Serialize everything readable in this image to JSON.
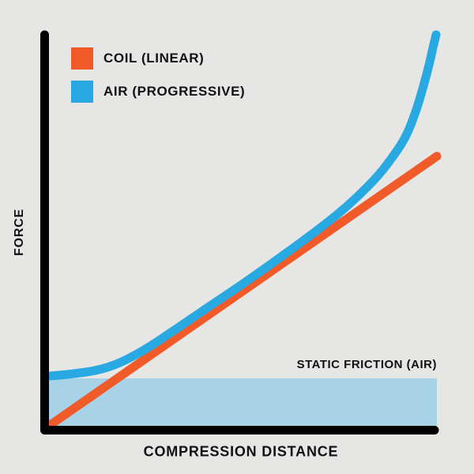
{
  "colors": {
    "background": "#E6E6E5",
    "coil": "#F15A29",
    "air": "#29A9E1",
    "band": "#A8D2E6",
    "axis": "#000000",
    "text": "#111111"
  },
  "legend": {
    "items": [
      {
        "label": "COIL (LINEAR)",
        "color_key": "coil"
      },
      {
        "label": "AIR (PROGRESSIVE)",
        "color_key": "air"
      }
    ]
  },
  "annotations": {
    "static_friction_label": "STATIC FRICTION (AIR)"
  },
  "chart_data": {
    "type": "line",
    "title": "",
    "xlabel": "COMPRESSION DISTANCE",
    "ylabel": "FORCE",
    "x_range": [
      0,
      1
    ],
    "y_range": [
      0,
      1
    ],
    "grid": false,
    "legend_position": "top-left",
    "series": [
      {
        "name": "COIL (LINEAR)",
        "style": "linear",
        "color_key": "coil",
        "points": [
          [
            0.0,
            0.0
          ],
          [
            1.0,
            0.688
          ]
        ]
      },
      {
        "name": "AIR (PROGRESSIVE)",
        "style": "progressive",
        "color_key": "air",
        "points": [
          [
            0.0,
            0.127
          ],
          [
            0.077,
            0.133
          ],
          [
            0.159,
            0.149
          ],
          [
            0.24,
            0.189
          ],
          [
            0.322,
            0.243
          ],
          [
            0.403,
            0.298
          ],
          [
            0.485,
            0.352
          ],
          [
            0.566,
            0.408
          ],
          [
            0.648,
            0.467
          ],
          [
            0.729,
            0.527
          ],
          [
            0.79,
            0.579
          ],
          [
            0.851,
            0.64
          ],
          [
            0.892,
            0.694
          ],
          [
            0.922,
            0.74
          ],
          [
            0.947,
            0.805
          ],
          [
            0.965,
            0.865
          ],
          [
            0.98,
            0.921
          ],
          [
            0.99,
            0.966
          ],
          [
            0.996,
            0.99
          ],
          [
            0.998,
            0.998
          ]
        ]
      }
    ],
    "regions": [
      {
        "name": "STATIC FRICTION (AIR)",
        "y_from": 0.0,
        "y_to": 0.121,
        "color_key": "band"
      }
    ]
  }
}
